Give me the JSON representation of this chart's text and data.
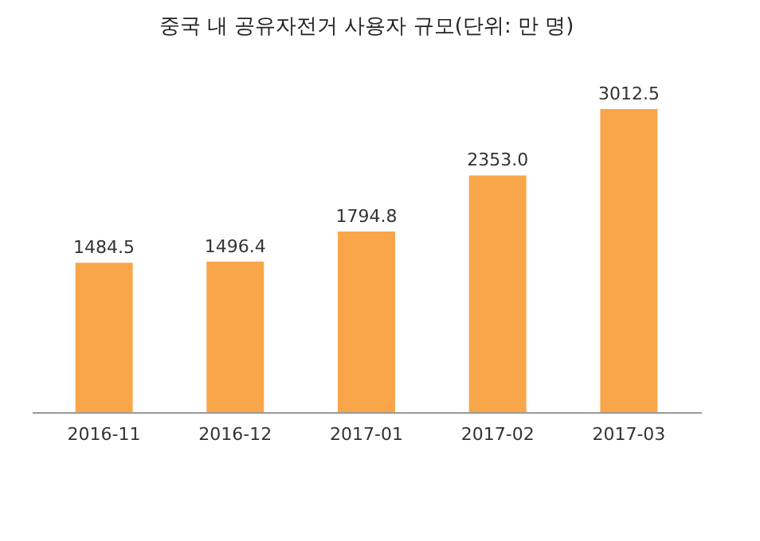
{
  "chart_data": {
    "type": "bar",
    "title": "중국 내 공유자전거 사용자 규모(단위: 만 명)",
    "categories": [
      "2016-11",
      "2016-12",
      "2017-01",
      "2017-02",
      "2017-03"
    ],
    "values": [
      1484.5,
      1496.4,
      1794.8,
      2353.0,
      3012.5
    ],
    "value_labels": [
      "1484.5",
      "1496.4",
      "1794.8",
      "2353.0",
      "3012.5"
    ],
    "color": "#f9a64a",
    "tick_labels": "x"
  }
}
